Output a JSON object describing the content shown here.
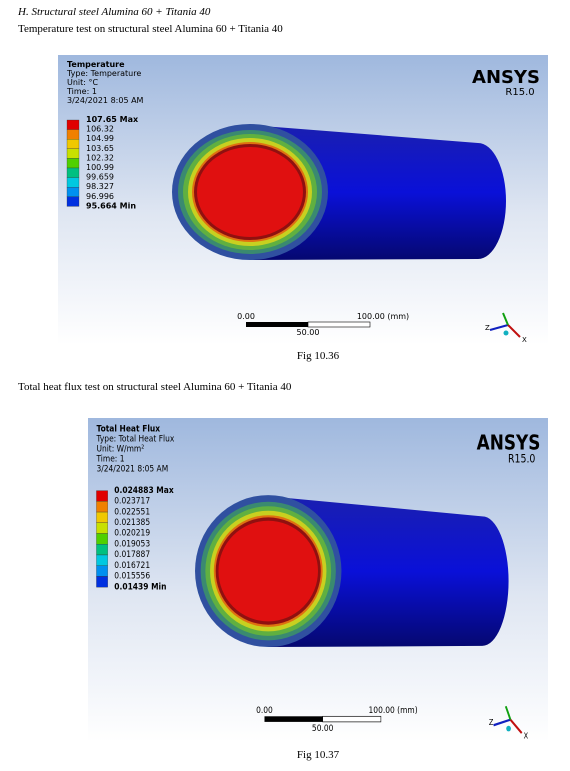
{
  "heading": "H.   Structural steel Alumina 60 + Titania 40",
  "figures": [
    {
      "intro": "Temperature test on structural steel Alumina 60 + Titania 40",
      "panel": {
        "title": "Temperature",
        "type_line": "Type: Temperature",
        "unit": "Unit: °C",
        "time": "Time: 1",
        "date": "3/24/2021 8:05 AM",
        "legend": [
          "107.65 Max",
          "106.32",
          "104.99",
          "103.65",
          "102.32",
          "100.99",
          "99.659",
          "98.327",
          "96.996",
          "95.664 Min"
        ],
        "logo": "ANSYS",
        "version": "R15.0",
        "scale_start": "0.00",
        "scale_end": "100.00 (mm)",
        "scale_mid": "50.00",
        "axis_z": "Z",
        "axis_x": "X"
      },
      "caption": "Fig 10.36"
    },
    {
      "intro": "Total heat flux test on structural steel Alumina 60 + Titania 40",
      "panel": {
        "title": "Total Heat Flux",
        "type_line": "Type: Total Heat Flux",
        "unit": "Unit: W/mm²",
        "time": "Time: 1",
        "date": "3/24/2021 8:05 AM",
        "legend": [
          "0.024883 Max",
          "0.023717",
          "0.022551",
          "0.021385",
          "0.020219",
          "0.019053",
          "0.017887",
          "0.016721",
          "0.015556",
          "0.01439 Min"
        ],
        "logo": "ANSYS",
        "version": "R15.0",
        "scale_start": "0.00",
        "scale_end": "100.00 (mm)",
        "scale_mid": "50.00",
        "axis_z": "Z",
        "axis_x": "X"
      },
      "caption": "Fig 10.37"
    }
  ]
}
